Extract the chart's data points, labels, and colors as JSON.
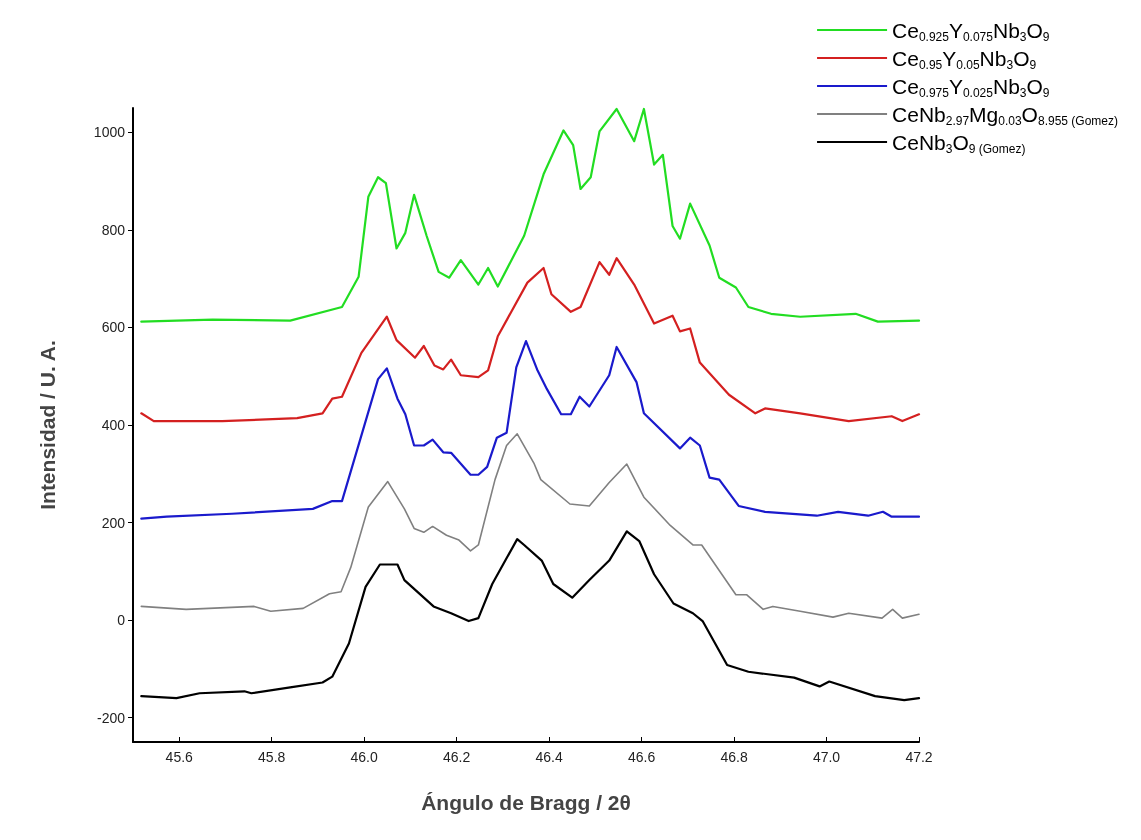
{
  "chart_data": {
    "type": "line",
    "xlabel": "Ángulo de Bragg / 2θ",
    "ylabel": "Intensidad / U. A.",
    "xlim": [
      45.5,
      47.2
    ],
    "xticks": [
      45.6,
      45.8,
      {
        "value": 46,
        "label": "46.0"
      },
      46.2,
      46.4,
      46.6,
      46.8,
      {
        "value": 47,
        "label": "47.0"
      },
      47.2
    ],
    "ylim": [
      -250,
      1050
    ],
    "yticks": [
      -200,
      0,
      200,
      400,
      600,
      800,
      1000
    ],
    "grid": false,
    "legend": "top right",
    "marker": "none",
    "line_style": "solid",
    "series": [
      {
        "name": "Ce$_{0.925}$Y$_{0.075}$Nb$_{3}$O$_{9}$",
        "color": "#22dd22",
        "x": [
          45.518,
          45.672,
          45.84,
          45.952,
          45.988,
          46.009,
          46.03,
          46.047,
          46.07,
          46.089,
          46.108,
          46.135,
          46.161,
          46.184,
          46.209,
          46.247,
          46.268,
          46.289,
          46.346,
          46.388,
          46.431,
          46.452,
          46.468,
          46.49,
          46.509,
          46.546,
          46.584,
          46.605,
          46.627,
          46.646,
          46.667,
          46.683,
          46.705,
          46.747,
          46.768,
          46.804,
          46.831,
          46.88,
          46.943,
          47.063,
          47.111,
          47.2
        ],
        "values": [
          612,
          616,
          614,
          642,
          704,
          868,
          908,
          896,
          762,
          794,
          872,
          788,
          714,
          702,
          738,
          688,
          722,
          684,
          788,
          914,
          1004,
          974,
          884,
          908,
          1002,
          1048,
          982,
          1048,
          934,
          954,
          808,
          782,
          854,
          768,
          702,
          682,
          642,
          628,
          622,
          628,
          612,
          614
        ]
      },
      {
        "name": "Ce$_{0.95}$Y$_{0.05}$Nb$_{3}$O$_{9}$",
        "color": "#d42020",
        "x": [
          45.518,
          45.545,
          45.693,
          45.855,
          45.91,
          45.931,
          45.952,
          45.994,
          46.049,
          46.07,
          46.11,
          46.129,
          46.152,
          46.171,
          46.188,
          46.209,
          46.247,
          46.268,
          46.289,
          46.353,
          46.388,
          46.405,
          46.447,
          46.468,
          46.509,
          46.53,
          46.546,
          46.584,
          46.627,
          46.667,
          46.683,
          46.705,
          46.726,
          46.789,
          46.846,
          46.867,
          46.943,
          47.048,
          47.141,
          47.164,
          47.2
        ],
        "values": [
          424,
          408,
          408,
          414,
          424,
          454,
          458,
          548,
          622,
          574,
          538,
          562,
          522,
          514,
          534,
          502,
          498,
          512,
          582,
          692,
          722,
          668,
          632,
          642,
          734,
          708,
          742,
          688,
          608,
          624,
          592,
          598,
          528,
          462,
          424,
          434,
          424,
          408,
          418,
          408,
          422
        ]
      },
      {
        "name": "Ce$_{0.975}$Y$_{0.025}$Nb$_{3}$O$_{9}$",
        "color": "#1a1acc",
        "x": [
          45.518,
          45.573,
          45.714,
          45.889,
          45.931,
          45.952,
          46.03,
          46.049,
          46.072,
          46.089,
          46.108,
          46.129,
          46.148,
          46.171,
          46.188,
          46.23,
          46.247,
          46.266,
          46.287,
          46.308,
          46.329,
          46.35,
          46.374,
          46.395,
          46.426,
          46.447,
          46.466,
          46.487,
          46.53,
          46.546,
          46.589,
          46.605,
          46.683,
          46.705,
          46.726,
          46.747,
          46.768,
          46.81,
          46.867,
          46.979,
          47.025,
          47.09,
          47.122,
          47.141,
          47.2
        ],
        "values": [
          208,
          212,
          218,
          228,
          244,
          244,
          494,
          516,
          454,
          422,
          358,
          358,
          370,
          344,
          343,
          298,
          298,
          314,
          374,
          384,
          518,
          572,
          514,
          474,
          422,
          422,
          458,
          438,
          502,
          560,
          488,
          424,
          352,
          374,
          358,
          292,
          288,
          234,
          222,
          214,
          222,
          214,
          222,
          212,
          212
        ]
      },
      {
        "name": "CeNb$_{2.97}$Mg$_{0.03}$O$_{8.955 (Gomez)}$",
        "color": "#808080",
        "x": [
          45.518,
          45.615,
          45.762,
          45.798,
          45.868,
          45.925,
          45.95,
          45.971,
          46.009,
          46.051,
          46.087,
          46.108,
          46.129,
          46.148,
          46.178,
          46.205,
          46.23,
          46.247,
          46.283,
          46.308,
          46.331,
          46.367,
          46.382,
          46.445,
          46.487,
          46.53,
          46.568,
          46.605,
          46.662,
          46.711,
          46.73,
          46.804,
          46.827,
          46.863,
          46.884,
          46.943,
          47.014,
          47.048,
          47.12,
          47.143,
          47.164,
          47.2
        ],
        "values": [
          28,
          22,
          28,
          18,
          24,
          54,
          58,
          108,
          232,
          284,
          228,
          188,
          180,
          192,
          174,
          164,
          142,
          154,
          288,
          358,
          382,
          322,
          288,
          238,
          234,
          282,
          320,
          252,
          194,
          154,
          154,
          52,
          52,
          22,
          28,
          18,
          6,
          14,
          4,
          22,
          4,
          12
        ]
      },
      {
        "name": "CeNb$_{3}$O$_{9 (Gomez)}$",
        "color": "#000000",
        "x": [
          45.518,
          45.594,
          45.644,
          45.741,
          45.756,
          45.84,
          45.91,
          45.931,
          45.967,
          46.003,
          46.034,
          46.072,
          46.087,
          46.15,
          46.188,
          46.226,
          46.247,
          46.277,
          46.331,
          46.346,
          46.384,
          46.409,
          46.45,
          46.487,
          46.53,
          46.568,
          46.595,
          46.627,
          46.669,
          46.711,
          46.732,
          46.785,
          46.831,
          46.93,
          46.985,
          47.006,
          47.105,
          47.168,
          47.2
        ],
        "values": [
          -156,
          -160,
          -150,
          -146,
          -150,
          -138,
          -128,
          -116,
          -48,
          68,
          114,
          114,
          82,
          28,
          14,
          -2,
          4,
          74,
          166,
          154,
          122,
          74,
          46,
          82,
          122,
          182,
          162,
          94,
          34,
          14,
          -2,
          -92,
          -106,
          -118,
          -136,
          -126,
          -156,
          -164,
          -160
        ]
      }
    ]
  }
}
